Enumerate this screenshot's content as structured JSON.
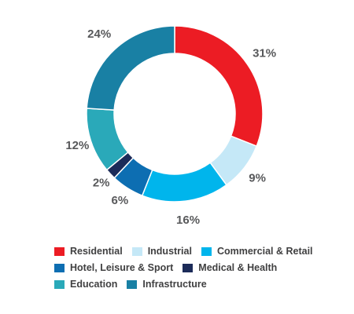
{
  "chart_data": {
    "type": "pie",
    "donut": true,
    "categories": [
      "Residential",
      "Industrial",
      "Commercial & Retail",
      "Hotel, Leisure & Sport",
      "Medical & Health",
      "Education",
      "Infrastructure"
    ],
    "values": [
      31,
      9,
      16,
      6,
      2,
      12,
      24
    ],
    "labels": [
      "31%",
      "9%",
      "16%",
      "6%",
      "2%",
      "12%",
      "24%"
    ],
    "colors": [
      "#ec1c24",
      "#c5e8f7",
      "#00b5ec",
      "#0d6eb2",
      "#1c2b59",
      "#2aa9b9",
      "#1980a4"
    ],
    "legend_placement": "bottom",
    "title": "",
    "xlabel": "",
    "ylabel": ""
  },
  "legend": {
    "rows": [
      [
        {
          "label": "Residential",
          "color": "#ec1c24"
        },
        {
          "label": "Industrial",
          "color": "#c5e8f7"
        },
        {
          "label": "Commercial & Retail",
          "color": "#00b5ec"
        }
      ],
      [
        {
          "label": "Hotel, Leisure & Sport",
          "color": "#0d6eb2"
        },
        {
          "label": "Medical & Health",
          "color": "#1c2b59"
        }
      ],
      [
        {
          "label": "Education",
          "color": "#2aa9b9"
        },
        {
          "label": "Infrastructure",
          "color": "#1980a4"
        }
      ]
    ]
  }
}
